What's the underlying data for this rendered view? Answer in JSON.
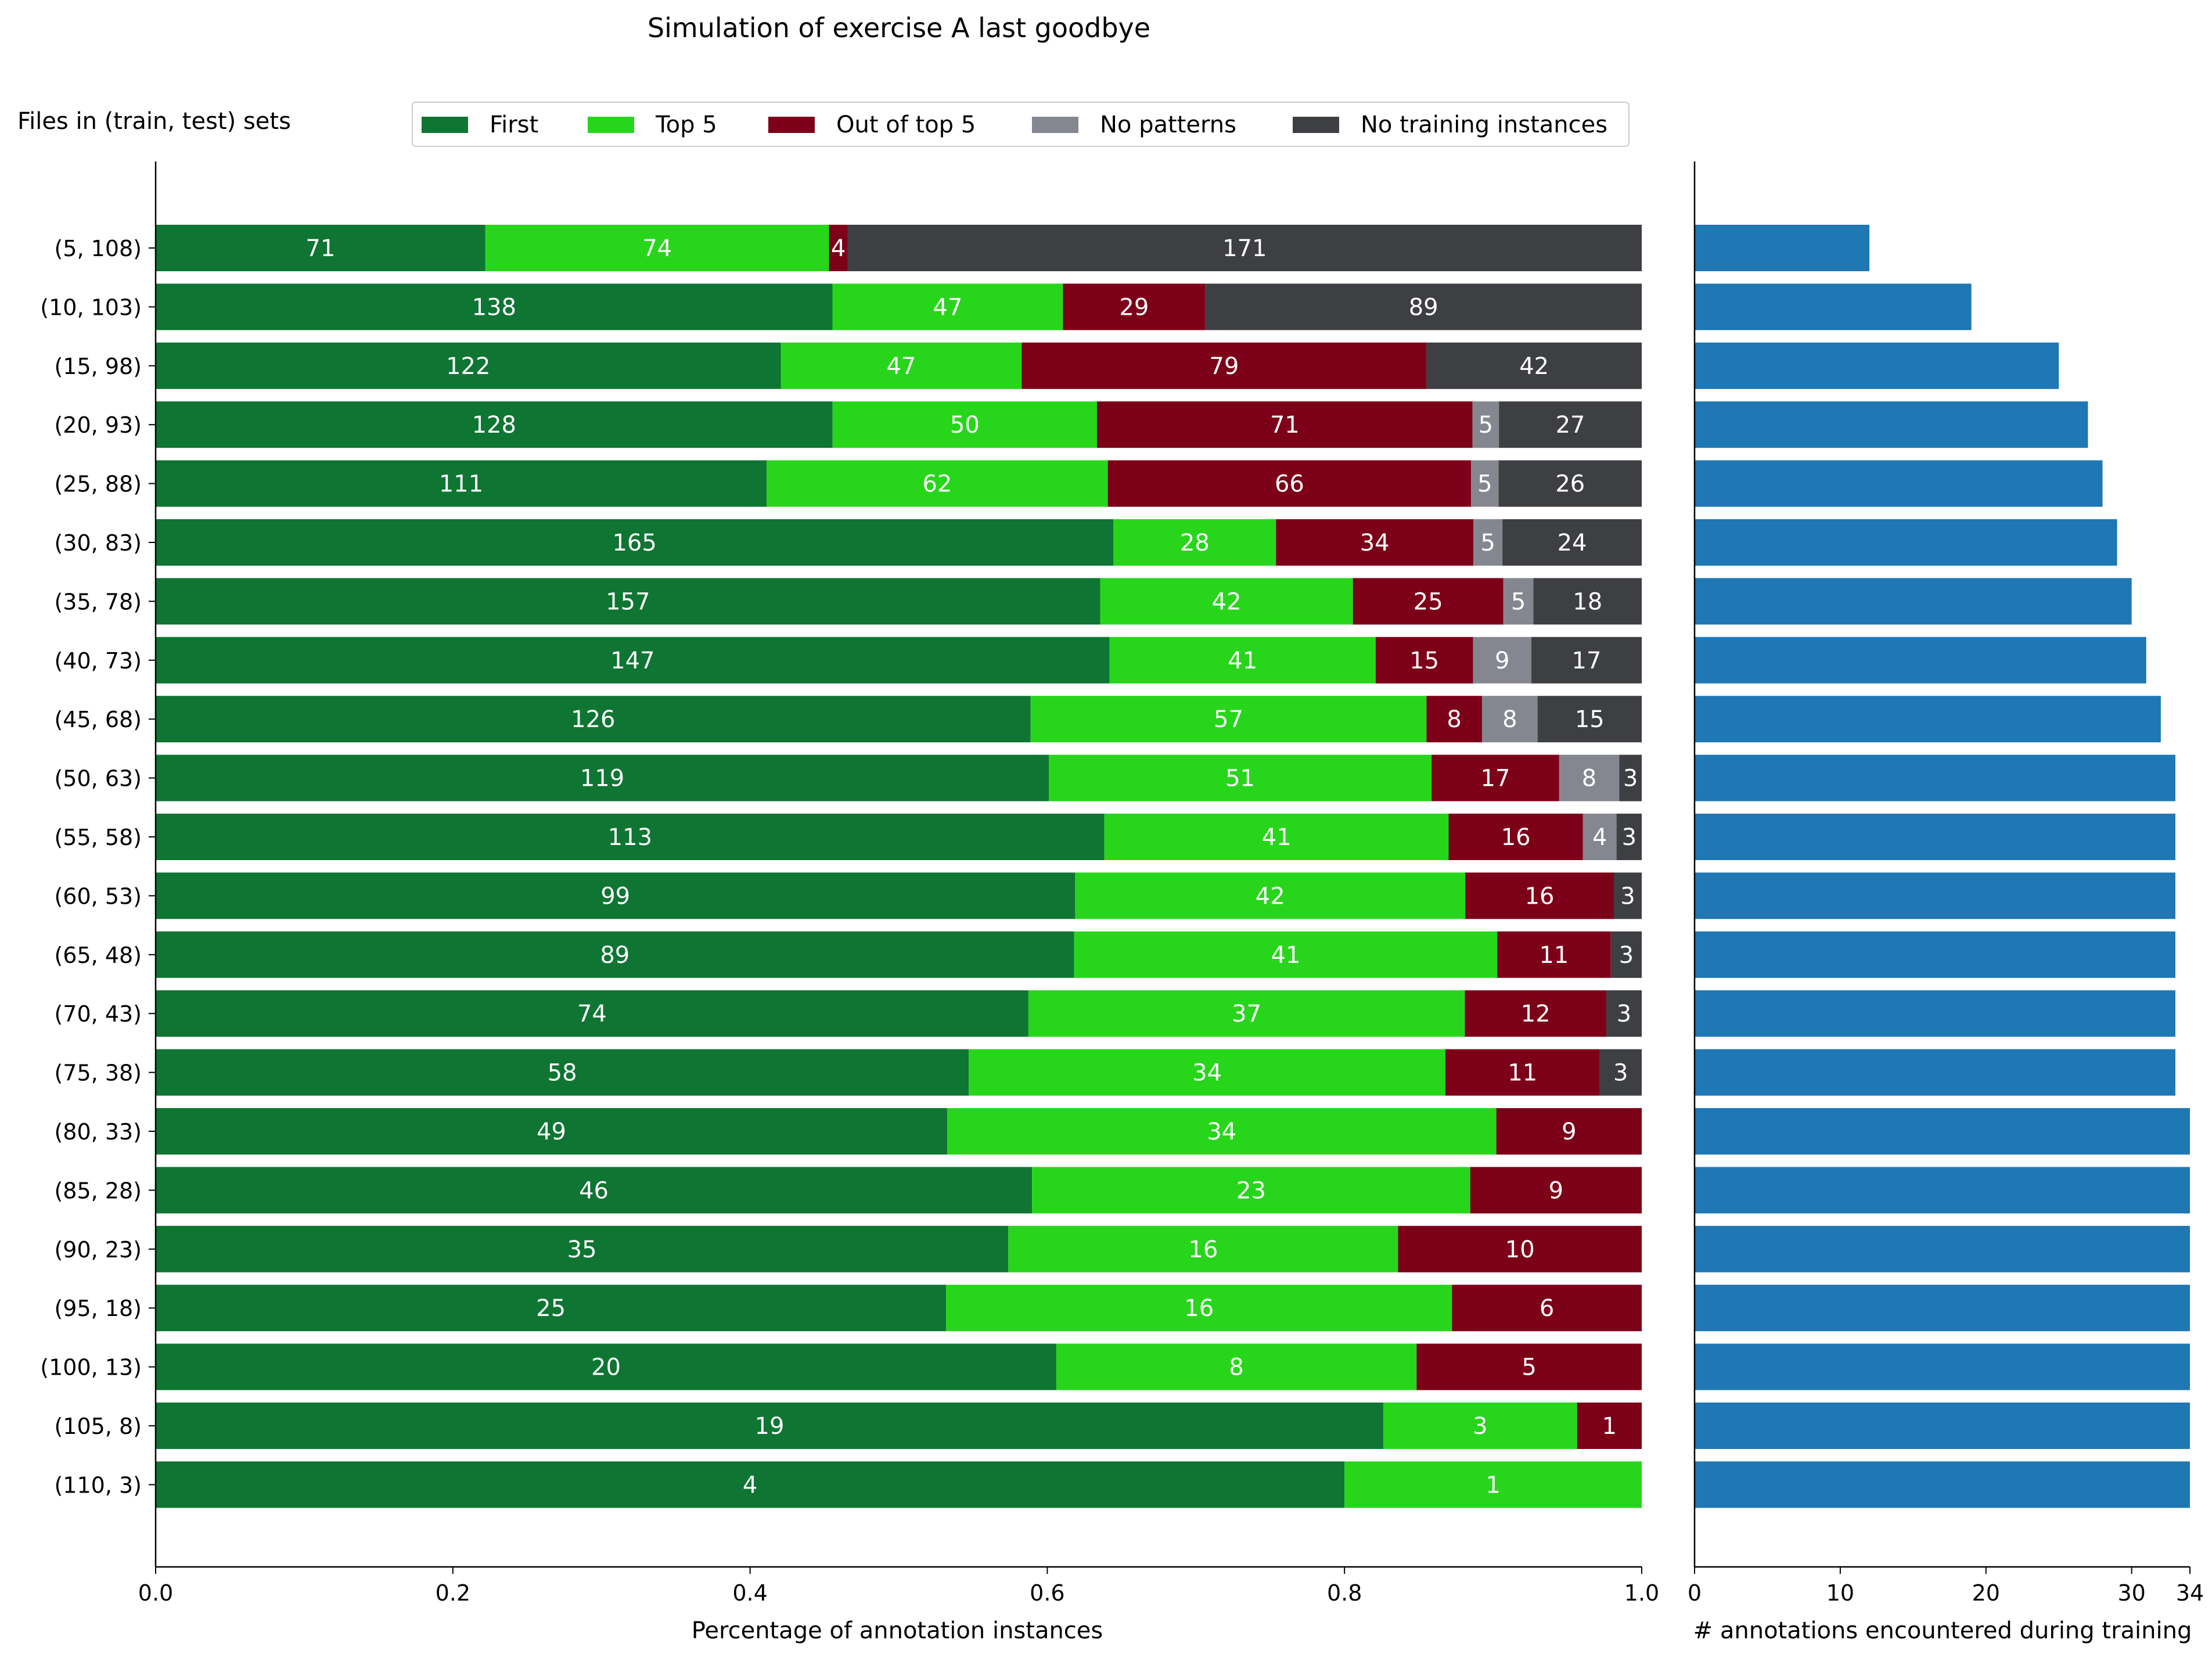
{
  "chart_data": [
    {
      "type": "bar",
      "orientation": "horizontal",
      "stacked": true,
      "normalized": true,
      "title": "Simulation of exercise A last goodbye",
      "xlabel": "Percentage of annotation instances",
      "ylabel": "Files in (train, test) sets",
      "xlim": [
        0,
        1
      ],
      "xticks": [
        "0.0",
        "0.2",
        "0.4",
        "0.6",
        "0.8",
        "1.0"
      ],
      "legend_position": "top",
      "categories": [
        "(5, 108)",
        "(10, 103)",
        "(15, 98)",
        "(20, 93)",
        "(25, 88)",
        "(30, 83)",
        "(35, 78)",
        "(40, 73)",
        "(45, 68)",
        "(50, 63)",
        "(55, 58)",
        "(60, 53)",
        "(65, 48)",
        "(70, 43)",
        "(75, 38)",
        "(80, 33)",
        "(85, 28)",
        "(90, 23)",
        "(95, 18)",
        "(100, 13)",
        "(105, 8)",
        "(110, 3)"
      ],
      "series": [
        {
          "name": "First",
          "color": "#0e7532",
          "values": [
            71,
            138,
            122,
            128,
            111,
            165,
            157,
            147,
            126,
            119,
            113,
            99,
            89,
            74,
            58,
            49,
            46,
            35,
            25,
            20,
            19,
            4
          ]
        },
        {
          "name": "Top 5",
          "color": "#27d61b",
          "values": [
            74,
            47,
            47,
            50,
            62,
            28,
            42,
            41,
            57,
            51,
            41,
            42,
            41,
            37,
            34,
            34,
            23,
            16,
            16,
            8,
            3,
            1
          ]
        },
        {
          "name": "Out of top 5",
          "color": "#7d0019",
          "values": [
            4,
            29,
            79,
            71,
            66,
            34,
            25,
            15,
            8,
            17,
            16,
            16,
            11,
            12,
            11,
            9,
            9,
            10,
            6,
            5,
            1,
            0
          ]
        },
        {
          "name": "No patterns",
          "color": "#858790",
          "values": [
            0,
            0,
            0,
            5,
            5,
            5,
            5,
            9,
            8,
            8,
            4,
            0,
            0,
            0,
            0,
            0,
            0,
            0,
            0,
            0,
            0,
            0
          ]
        },
        {
          "name": "No training instances",
          "color": "#3e3f42",
          "values": [
            171,
            89,
            42,
            27,
            26,
            24,
            18,
            17,
            15,
            3,
            3,
            3,
            3,
            3,
            3,
            0,
            0,
            0,
            0,
            0,
            0,
            0
          ]
        }
      ]
    },
    {
      "type": "bar",
      "orientation": "horizontal",
      "xlabel": "# annotations encountered during training",
      "xlim": [
        0,
        34
      ],
      "xticks": [
        "0",
        "10",
        "20",
        "30",
        "34"
      ],
      "color": "#1f77b4",
      "categories": [
        "(5, 108)",
        "(10, 103)",
        "(15, 98)",
        "(20, 93)",
        "(25, 88)",
        "(30, 83)",
        "(35, 78)",
        "(40, 73)",
        "(45, 68)",
        "(50, 63)",
        "(55, 58)",
        "(60, 53)",
        "(65, 48)",
        "(70, 43)",
        "(75, 38)",
        "(80, 33)",
        "(85, 28)",
        "(90, 23)",
        "(95, 18)",
        "(100, 13)",
        "(105, 8)",
        "(110, 3)"
      ],
      "values": [
        12,
        19,
        25,
        27,
        28,
        29,
        30,
        31,
        32,
        33,
        33,
        33,
        33,
        33,
        33,
        34,
        34,
        34,
        34,
        34,
        34,
        34
      ]
    }
  ]
}
